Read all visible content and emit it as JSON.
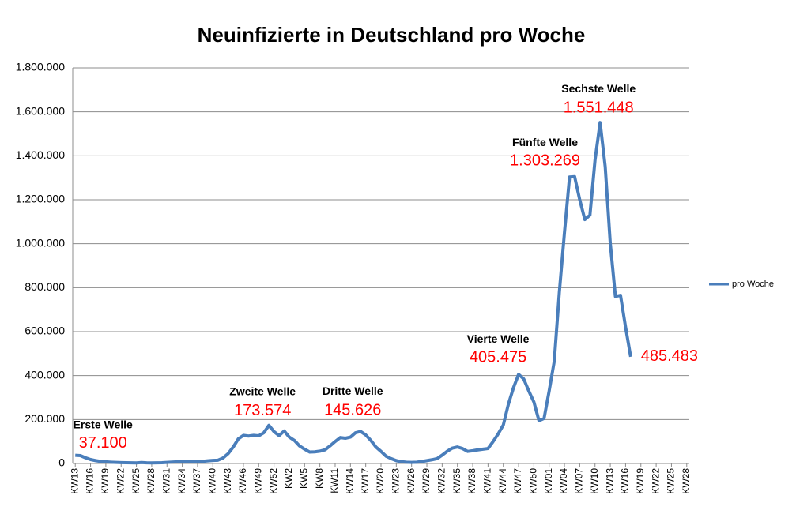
{
  "chart_data": {
    "type": "line",
    "title": "Neuinfizierte in Deutschland pro Woche",
    "categories": [
      "KW13",
      null,
      null,
      "KW16",
      null,
      null,
      "KW19",
      null,
      null,
      "KW22",
      null,
      null,
      "KW25",
      null,
      null,
      "KW28",
      null,
      null,
      "KW31",
      null,
      null,
      "KW34",
      null,
      null,
      "KW37",
      null,
      null,
      "KW40",
      null,
      null,
      "KW43",
      null,
      null,
      "KW46",
      null,
      null,
      "KW49",
      null,
      null,
      "KW52",
      null,
      null,
      "KW2",
      null,
      null,
      "KW5",
      null,
      null,
      "KW8",
      null,
      null,
      "KW11",
      null,
      null,
      "KW14",
      null,
      null,
      "KW17",
      null,
      null,
      "KW20",
      null,
      null,
      "KW23",
      null,
      null,
      "KW26",
      null,
      null,
      "KW29",
      null,
      null,
      "KW32",
      null,
      null,
      "KW35",
      null,
      null,
      "KW38",
      null,
      null,
      "KW41",
      null,
      null,
      "KW44",
      null,
      null,
      "KW47",
      null,
      null,
      "KW50",
      null,
      null,
      "KW01",
      null,
      null,
      "KW04",
      null,
      null,
      "KW07",
      null,
      null,
      "KW10",
      null,
      null,
      "KW13",
      null,
      null,
      "KW16",
      null,
      null,
      "KW19",
      null,
      null,
      "KW22",
      null,
      null,
      "KW25",
      null,
      null,
      "KW28"
    ],
    "series": [
      {
        "name": "pro Woche",
        "color": "#4a7ebb",
        "values": [
          37100,
          36000,
          26000,
          18000,
          13000,
          9500,
          7500,
          6000,
          5000,
          4000,
          3500,
          3000,
          2500,
          4500,
          3000,
          2500,
          3000,
          3500,
          5000,
          6500,
          7500,
          9000,
          9500,
          9000,
          9000,
          10000,
          12000,
          14000,
          15000,
          25000,
          45000,
          75000,
          112000,
          128000,
          125000,
          128000,
          126000,
          140000,
          173574,
          145000,
          127000,
          148000,
          120000,
          105000,
          80000,
          65000,
          52000,
          53000,
          56000,
          62000,
          80000,
          100000,
          118000,
          115000,
          120000,
          140000,
          145626,
          130000,
          105000,
          75000,
          55000,
          33000,
          22000,
          13000,
          8000,
          6000,
          5000,
          6000,
          9000,
          13000,
          17000,
          22000,
          38000,
          56000,
          70000,
          75000,
          68000,
          55000,
          58000,
          62000,
          65000,
          68000,
          100000,
          135000,
          175000,
          270000,
          345000,
          405475,
          385000,
          330000,
          280000,
          195000,
          205000,
          330000,
          465000,
          780000,
          1050000,
          1303269,
          1305000,
          1200000,
          1110000,
          1130000,
          1380000,
          1551448,
          1350000,
          1000000,
          760000,
          765000,
          620000,
          485483,
          null,
          null,
          null,
          null,
          null,
          null,
          null,
          null,
          null,
          null,
          null
        ],
        "value_labels": [
          "37.100",
          null,
          null,
          null,
          null,
          null,
          null,
          null,
          null,
          null,
          null,
          null,
          null,
          null,
          null,
          null,
          null,
          null,
          null,
          null,
          null,
          null,
          null,
          null,
          null,
          null,
          null,
          null,
          null,
          null,
          null,
          null,
          null,
          null,
          null,
          null,
          null,
          null,
          "173.574",
          null,
          null,
          null,
          null,
          null,
          null,
          null,
          null,
          null,
          null,
          null,
          null,
          null,
          null,
          null,
          null,
          null,
          "145.626",
          null,
          null,
          null,
          null,
          null,
          null,
          null,
          null,
          null,
          null,
          null,
          null,
          null,
          null,
          null,
          null,
          null,
          null,
          null,
          null,
          null,
          null,
          null,
          null,
          null,
          null,
          null,
          null,
          null,
          null,
          "405.475",
          null,
          null,
          null,
          null,
          null,
          null,
          null,
          null,
          null,
          "1.303.269",
          null,
          null,
          null,
          null,
          null,
          "1.551.448",
          null,
          null,
          null,
          null,
          null,
          "485.483",
          null,
          null,
          null,
          null,
          null,
          null,
          null,
          null,
          null,
          null,
          null
        ],
        "annotations": [
          "Erste Welle",
          null,
          null,
          null,
          null,
          null,
          null,
          null,
          null,
          null,
          null,
          null,
          null,
          null,
          null,
          null,
          null,
          null,
          null,
          null,
          null,
          null,
          null,
          null,
          null,
          null,
          null,
          null,
          null,
          null,
          null,
          null,
          null,
          null,
          null,
          null,
          null,
          null,
          "Zweite Welle",
          null,
          null,
          null,
          null,
          null,
          null,
          null,
          null,
          null,
          null,
          null,
          null,
          null,
          null,
          null,
          null,
          null,
          "Dritte Welle",
          null,
          null,
          null,
          null,
          null,
          null,
          null,
          null,
          null,
          null,
          null,
          null,
          null,
          null,
          null,
          null,
          null,
          null,
          null,
          null,
          null,
          null,
          null,
          null,
          null,
          null,
          null,
          null,
          null,
          null,
          "Vierte Welle",
          null,
          null,
          null,
          null,
          null,
          null,
          null,
          null,
          null,
          "Fünfte Welle",
          null,
          null,
          null,
          null,
          null,
          "Sechste Welle",
          null,
          null,
          null,
          null,
          null,
          null,
          null,
          null,
          null,
          null,
          null,
          null,
          null,
          null,
          null,
          null,
          null
        ]
      }
    ],
    "ylim": [
      0,
      1800000
    ],
    "yticks": [
      0,
      {
        "value": 200000,
        "label": "200.000"
      },
      {
        "value": 400000,
        "label": "400.000"
      },
      {
        "value": 600000,
        "label": "600.000"
      },
      {
        "value": 800000,
        "label": "800.000"
      },
      {
        "value": 1000000,
        "label": "1.000.000"
      },
      {
        "value": 1200000,
        "label": "1.200.000"
      },
      {
        "value": 1400000,
        "label": "1.400.000"
      },
      {
        "value": 1600000,
        "label": "1.600.000"
      },
      {
        "value": 1800000,
        "label": "1.800.000"
      }
    ],
    "grid": true,
    "legend": "right"
  }
}
